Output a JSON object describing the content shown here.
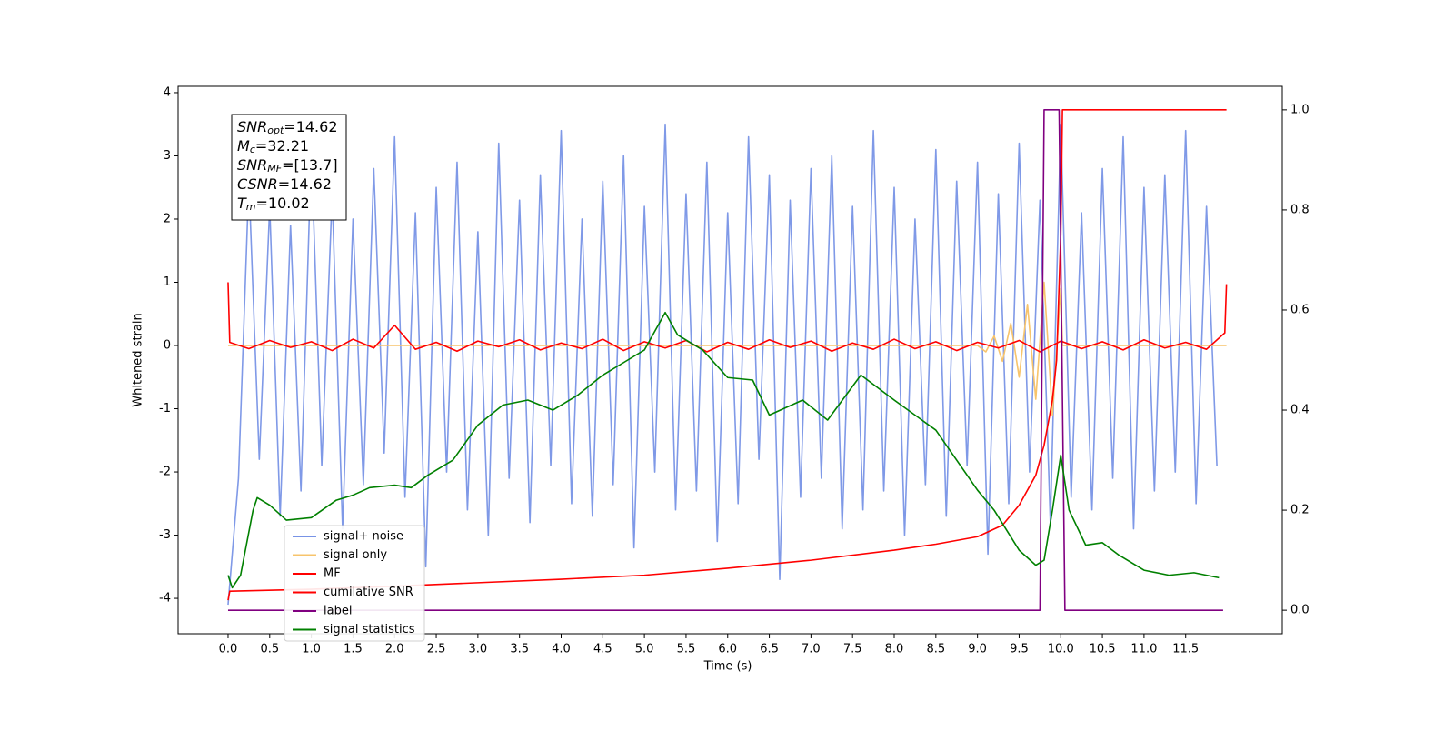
{
  "chart_data": {
    "type": "line",
    "xlabel": "Time (s)",
    "ylabel": "Whitened strain",
    "xlim": [
      -0.6,
      12.66
    ],
    "ylim": [
      -4.56,
      4.1
    ],
    "y2lim": [
      -0.047,
      1.047
    ],
    "xticks": [
      {
        "value": 0,
        "label": "0.0"
      },
      0.5,
      {
        "value": 1,
        "label": "1.0"
      },
      1.5,
      {
        "value": 2,
        "label": "2.0"
      },
      2.5,
      {
        "value": 3,
        "label": "3.0"
      },
      3.5,
      {
        "value": 4,
        "label": "4.0"
      },
      4.5,
      {
        "value": 5,
        "label": "5.0"
      },
      5.5,
      {
        "value": 6,
        "label": "6.0"
      },
      6.5,
      {
        "value": 7,
        "label": "7.0"
      },
      7.5,
      {
        "value": 8,
        "label": "8.0"
      },
      8.5,
      {
        "value": 9,
        "label": "9.0"
      },
      9.5,
      {
        "value": 10,
        "label": "10.0"
      },
      10.5,
      {
        "value": 11,
        "label": "11.0"
      },
      11.5
    ],
    "yticks": [
      -4,
      -3,
      -2,
      -1,
      0,
      1,
      2,
      3,
      4
    ],
    "y2ticks": [
      {
        "value": 0,
        "label": "0.0"
      },
      0.2,
      0.4,
      0.6,
      0.8,
      {
        "value": 1,
        "label": "1.0"
      }
    ],
    "legend": "lower left",
    "annotation_lines": [
      {
        "name": "SNR",
        "sub": "opt",
        "text": "=14.62"
      },
      {
        "name": "M",
        "sub": "c",
        "text": "=32.21"
      },
      {
        "name": "SNR",
        "sub": "MF",
        "text": "=[13.7]"
      },
      {
        "name": "CSNR",
        "text": "=14.62"
      },
      {
        "name": "T",
        "sub": "m",
        "text": "=10.02"
      }
    ],
    "series": [
      {
        "name": "signal+ noise",
        "color": "#7893e6",
        "x": [
          0,
          0.125,
          0.25,
          0.375,
          0.5,
          0.625,
          0.75,
          0.875,
          1,
          1.125,
          1.25,
          1.375,
          1.5,
          1.625,
          1.75,
          1.875,
          2,
          2.125,
          2.25,
          2.375,
          2.5,
          2.625,
          2.75,
          2.875,
          3,
          3.125,
          3.25,
          3.375,
          3.5,
          3.625,
          3.75,
          3.875,
          4,
          4.125,
          4.25,
          4.375,
          4.5,
          4.625,
          4.75,
          4.875,
          5,
          5.125,
          5.25,
          5.375,
          5.5,
          5.625,
          5.75,
          5.875,
          6,
          6.125,
          6.25,
          6.375,
          6.5,
          6.625,
          6.75,
          6.875,
          7,
          7.125,
          7.25,
          7.375,
          7.5,
          7.625,
          7.75,
          7.875,
          8,
          8.125,
          8.25,
          8.375,
          8.5,
          8.625,
          8.75,
          8.875,
          9,
          9.125,
          9.25,
          9.375,
          9.5,
          9.625,
          9.75,
          9.875,
          10,
          10.125,
          10.25,
          10.375,
          10.5,
          10.625,
          10.75,
          10.875,
          11,
          11.125,
          11.25,
          11.375,
          11.5,
          11.625,
          11.75,
          11.875
        ],
        "values": [
          -4.1,
          -2.1,
          2.6,
          -1.8,
          2.2,
          -2.7,
          1.9,
          -2.3,
          3.1,
          -1.9,
          2.4,
          -2.9,
          2.0,
          -2.2,
          2.8,
          -1.7,
          3.3,
          -2.4,
          2.1,
          -3.5,
          2.5,
          -2.0,
          2.9,
          -2.6,
          1.8,
          -3.0,
          3.2,
          -2.1,
          2.3,
          -2.8,
          2.7,
          -1.9,
          3.4,
          -2.5,
          2.0,
          -2.7,
          2.6,
          -2.2,
          3.0,
          -3.2,
          2.2,
          -2.0,
          3.5,
          -2.6,
          2.4,
          -2.3,
          2.9,
          -3.1,
          2.1,
          -2.5,
          3.3,
          -1.8,
          2.7,
          -3.7,
          2.3,
          -2.4,
          2.8,
          -2.1,
          3.0,
          -2.9,
          2.2,
          -2.6,
          3.4,
          -2.3,
          2.5,
          -3.0,
          2.0,
          -2.2,
          3.1,
          -2.7,
          2.6,
          -1.9,
          2.9,
          -3.3,
          2.4,
          -2.5,
          3.2,
          -2.0,
          2.3,
          -2.8,
          3.5,
          -2.4,
          2.1,
          -2.6,
          2.8,
          -2.1,
          3.3,
          -2.9,
          2.5,
          -2.3,
          2.7,
          -2.0,
          3.4,
          -2.5,
          2.2,
          -1.9
        ]
      },
      {
        "name": "signal only",
        "color": "#f7c46c",
        "x": [
          0,
          9.0,
          9.1,
          9.2,
          9.3,
          9.4,
          9.5,
          9.6,
          9.7,
          9.8,
          9.9,
          10.0,
          10.02,
          11.99
        ],
        "values": [
          0,
          0,
          -0.1,
          0.15,
          -0.25,
          0.35,
          -0.5,
          0.65,
          -0.85,
          1.0,
          -1.1,
          0.9,
          0,
          0
        ]
      },
      {
        "name": "MF",
        "color": "#ff0000",
        "x": [
          0,
          0.02,
          0.25,
          0.5,
          0.75,
          1,
          1.25,
          1.5,
          1.75,
          2,
          2.25,
          2.5,
          2.75,
          3,
          3.25,
          3.5,
          3.75,
          4,
          4.25,
          4.5,
          4.75,
          5,
          5.25,
          5.5,
          5.75,
          6,
          6.25,
          6.5,
          6.75,
          7,
          7.25,
          7.5,
          7.75,
          8,
          8.25,
          8.5,
          8.75,
          9,
          9.25,
          9.5,
          9.75,
          10,
          10.25,
          10.5,
          10.75,
          11,
          11.25,
          11.5,
          11.75,
          11.97,
          11.99
        ],
        "values": [
          1.0,
          0.05,
          -0.05,
          0.08,
          -0.03,
          0.06,
          -0.08,
          0.1,
          -0.04,
          0.32,
          -0.06,
          0.05,
          -0.09,
          0.07,
          -0.02,
          0.09,
          -0.07,
          0.04,
          -0.05,
          0.1,
          -0.08,
          0.06,
          -0.04,
          0.08,
          -0.1,
          0.05,
          -0.06,
          0.09,
          -0.03,
          0.07,
          -0.09,
          0.04,
          -0.06,
          0.1,
          -0.05,
          0.06,
          -0.08,
          0.05,
          -0.04,
          0.08,
          -0.1,
          0.07,
          -0.05,
          0.06,
          -0.07,
          0.09,
          -0.04,
          0.05,
          -0.06,
          0.2,
          0.97
        ]
      },
      {
        "name": "cumilative SNR",
        "color": "#ff0000",
        "axis": "y2",
        "x": [
          0,
          0.02,
          1,
          2,
          3,
          4,
          5,
          6,
          7,
          8,
          8.5,
          9,
          9.3,
          9.5,
          9.7,
          9.8,
          9.9,
          9.95,
          10.0,
          10.02,
          10.05,
          11.99
        ],
        "values": [
          0.02,
          0.038,
          0.042,
          0.048,
          0.055,
          0.062,
          0.07,
          0.084,
          0.1,
          0.12,
          0.132,
          0.147,
          0.17,
          0.21,
          0.27,
          0.33,
          0.42,
          0.5,
          0.75,
          1.0,
          1.0,
          1.0
        ]
      },
      {
        "name": "label",
        "color": "#800080",
        "axis": "y2",
        "x": [
          0,
          9.75,
          9.8,
          9.98,
          10.05,
          11.95
        ],
        "values": [
          0,
          0,
          1,
          1,
          0,
          0
        ]
      },
      {
        "name": "signal statistics",
        "color": "#008000",
        "axis": "y2",
        "x": [
          0,
          0.05,
          0.15,
          0.3,
          0.35,
          0.5,
          0.7,
          1.0,
          1.3,
          1.5,
          1.7,
          2.0,
          2.2,
          2.4,
          2.7,
          3.0,
          3.3,
          3.6,
          3.9,
          4.2,
          4.5,
          4.8,
          5.0,
          5.25,
          5.4,
          5.7,
          6.0,
          6.3,
          6.5,
          6.9,
          7.2,
          7.6,
          8.0,
          8.5,
          9.0,
          9.2,
          9.5,
          9.7,
          9.8,
          9.9,
          10.0,
          10.1,
          10.3,
          10.5,
          10.7,
          11.0,
          11.3,
          11.6,
          11.9
        ],
        "values": [
          0.07,
          0.045,
          0.07,
          0.2,
          0.225,
          0.21,
          0.18,
          0.185,
          0.22,
          0.23,
          0.245,
          0.25,
          0.245,
          0.27,
          0.3,
          0.37,
          0.41,
          0.42,
          0.4,
          0.43,
          0.47,
          0.5,
          0.52,
          0.595,
          0.55,
          0.52,
          0.465,
          0.46,
          0.39,
          0.42,
          0.38,
          0.47,
          0.42,
          0.36,
          0.24,
          0.2,
          0.12,
          0.09,
          0.1,
          0.2,
          0.31,
          0.2,
          0.13,
          0.135,
          0.11,
          0.08,
          0.07,
          0.075,
          0.065
        ]
      }
    ]
  }
}
